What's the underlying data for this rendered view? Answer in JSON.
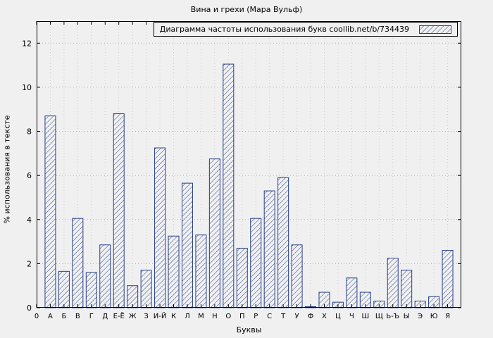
{
  "chart_data": {
    "type": "bar",
    "title": "Вина и грехи (Мара Вульф)",
    "legend": "Диаграмма частоты использования букв coollib.net/b/734439",
    "legend_position": "top-right",
    "xlabel": "Буквы",
    "ylabel": "% использования в тексте",
    "x_first_tick": "0",
    "categories": [
      "А",
      "Б",
      "В",
      "Г",
      "Д",
      "Е-Ё",
      "Ж",
      "З",
      "И-Й",
      "К",
      "Л",
      "М",
      "Н",
      "О",
      "П",
      "Р",
      "С",
      "Т",
      "У",
      "Ф",
      "Х",
      "Ц",
      "Ч",
      "Ш",
      "Щ",
      "Ь-Ъ",
      "Ы",
      "Э",
      "Ю",
      "Я"
    ],
    "values": [
      8.7,
      1.65,
      4.05,
      1.6,
      2.85,
      8.8,
      1.0,
      1.7,
      7.25,
      3.25,
      5.65,
      3.3,
      6.75,
      11.05,
      2.7,
      4.05,
      5.3,
      5.9,
      2.85,
      0.05,
      0.7,
      0.25,
      1.35,
      0.7,
      0.3,
      2.25,
      1.7,
      0.3,
      0.5,
      2.6
    ],
    "ylim": [
      0,
      13
    ],
    "yticks": [
      0,
      2,
      4,
      6,
      8,
      10,
      12
    ],
    "grid": true,
    "bar_color": "#27408b",
    "grid_color": "#b4b4b4",
    "background_color": "#f0f0f0",
    "hatch_style": "diagonal"
  }
}
